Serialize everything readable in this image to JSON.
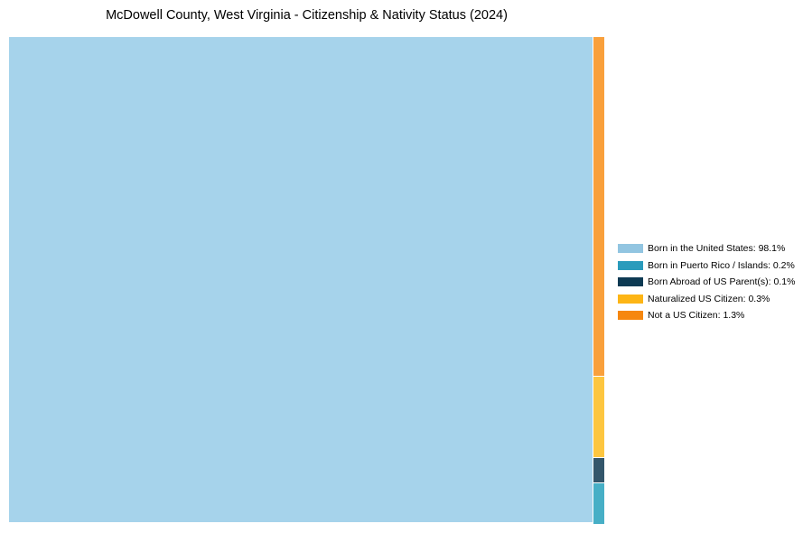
{
  "chart_data": {
    "type": "treemap",
    "title": "McDowell County, West Virginia - Citizenship & Nativity Status (2024)",
    "categories": [
      "Born in the United States",
      "Born in Puerto Rico / Islands",
      "Born Abroad of US Parent(s)",
      "Naturalized US Citizen",
      "Not a US Citizen"
    ],
    "values": [
      98.1,
      0.2,
      0.1,
      0.3,
      1.3
    ],
    "unit": "%",
    "legend_position": "right",
    "background_color": "#ffffff"
  },
  "tiles": [
    {
      "name": "Born in the United States",
      "value_pct": 98.1,
      "color": "#A6D3EB"
    },
    {
      "name": "Not a US Citizen",
      "value_pct": 1.3,
      "color": "#F9A03C"
    },
    {
      "name": "Naturalized US Citizen",
      "value_pct": 0.3,
      "color": "#FDC640"
    },
    {
      "name": "Born Abroad of US Parent(s)",
      "value_pct": 0.1,
      "color": "#33566B"
    },
    {
      "name": "Born in Puerto Rico / Islands",
      "value_pct": 0.2,
      "color": "#47AFC6"
    }
  ],
  "legend": {
    "items": [
      {
        "label": "Born in the United States: 98.1%",
        "color": "#92C5E1"
      },
      {
        "label": "Born in Puerto Rico / Islands: 0.2%",
        "color": "#2A9BBC"
      },
      {
        "label": "Born Abroad of US Parent(s): 0.1%",
        "color": "#0D3A53"
      },
      {
        "label": "Naturalized US Citizen: 0.3%",
        "color": "#FDB515"
      },
      {
        "label": "Not a US Citizen: 1.3%",
        "color": "#F6870F"
      }
    ]
  }
}
